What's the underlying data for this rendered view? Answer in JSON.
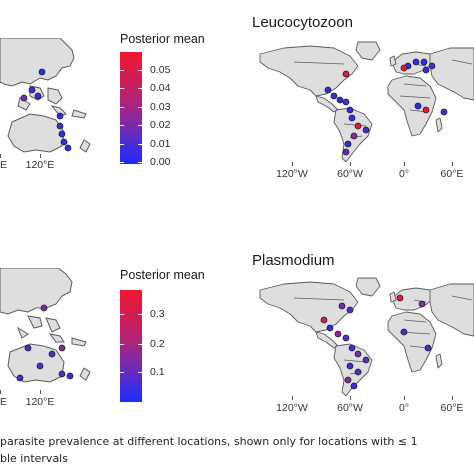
{
  "panels": {
    "top": {
      "legend_title": "Posterior mean",
      "legend_ticks": [
        "0.05",
        "0.04",
        "0.03",
        "0.02",
        "0.01",
        "0.00"
      ],
      "left_axis_labels": [
        "E",
        "120°E"
      ],
      "right_title": "Leucocytozoon",
      "right_axis_labels": [
        "120°W",
        "60°W",
        "0°",
        "60°E"
      ]
    },
    "bottom": {
      "legend_title": "Posterior mean",
      "legend_ticks": [
        "0.3",
        "0.2",
        "0.1"
      ],
      "left_axis_labels": [
        "E",
        "120°E"
      ],
      "right_title": "Plasmodium",
      "right_axis_labels": [
        "120°W",
        "60°W",
        "0°",
        "60°E"
      ]
    }
  },
  "caption": {
    "line1": "parasite prevalence at different locations, shown only for locations with ≤ 1",
    "line2": "ble intervals"
  },
  "colors": {
    "land": "#dedede",
    "border": "#5a5a5a",
    "scale_high": "#f2162e",
    "scale_mid": "#8a27a0",
    "scale_low": "#1a2cff"
  }
}
